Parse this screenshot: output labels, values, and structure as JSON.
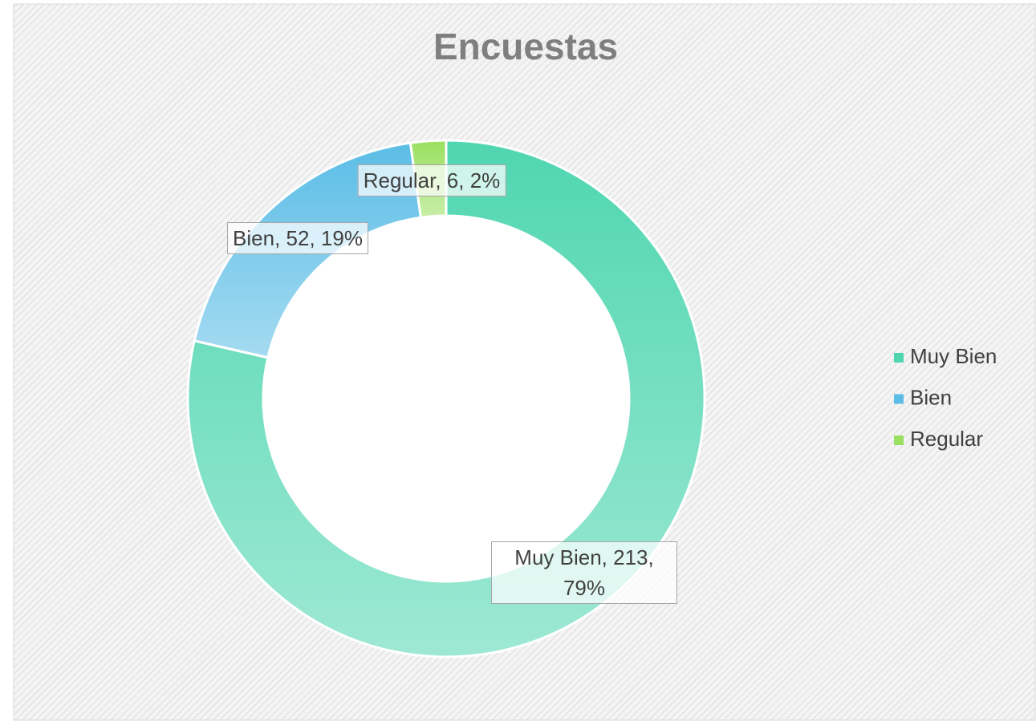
{
  "chart_data": {
    "type": "donut",
    "title": "Encuestas",
    "categories": [
      "Muy Bien",
      "Bien",
      "Regular"
    ],
    "values": [
      213,
      52,
      6
    ],
    "value_labels": [
      "Muy Bien, 213, 79%",
      "Bien, 52, 19%",
      "Regular, 6, 2%"
    ],
    "colors": [
      "#4fd6b0",
      "#5bbde6",
      "#9be060"
    ],
    "legend": "right"
  }
}
